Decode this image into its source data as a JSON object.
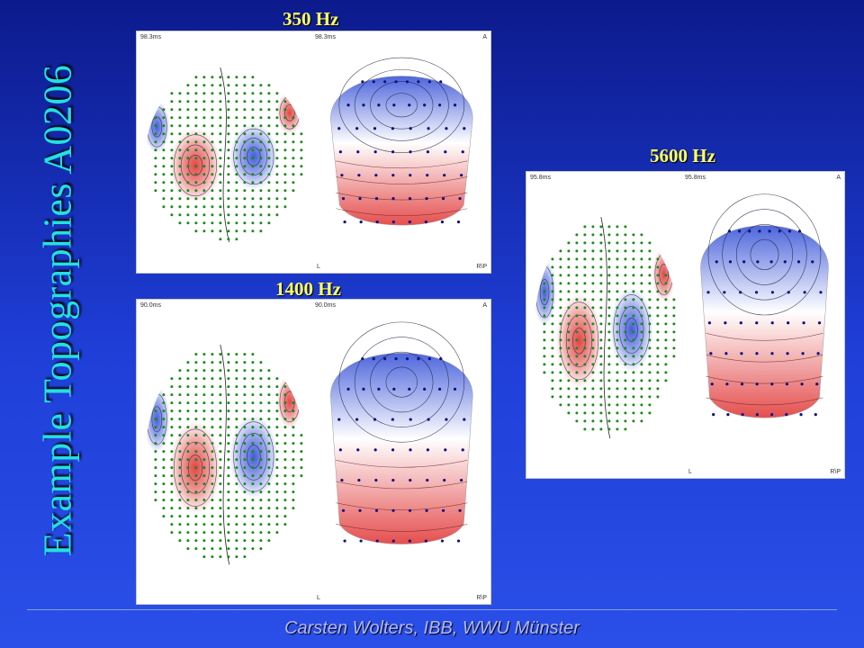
{
  "slide": {
    "title": "Example Topographies A0206",
    "footer": "Carsten Wolters, IBB, WWU Münster"
  },
  "panels": [
    {
      "id": "p350",
      "label": "350 Hz",
      "time_left": "98.3ms",
      "time_center": "98.3ms",
      "corner_a": "A",
      "corner_l": "L",
      "corner_rp": "R\\P"
    },
    {
      "id": "p1400",
      "label": "1400 Hz",
      "time_left": "90.0ms",
      "time_center": "90.0ms",
      "corner_a": "A",
      "corner_l": "L",
      "corner_rp": "R\\P"
    },
    {
      "id": "p5600",
      "label": "5600 Hz",
      "time_left": "95.8ms",
      "time_center": "95.8ms",
      "corner_a": "A",
      "corner_l": "L",
      "corner_rp": "R\\P"
    }
  ],
  "colors": {
    "background": "#1f3fd8",
    "title": "#24e0e0",
    "frequency_label": "#ffff66",
    "footer": "#b0b8ff",
    "positive": "#e23b3b",
    "negative": "#3a55d8",
    "eeg_sensor": "#1a8a1a",
    "meg_sensor": "#101080"
  }
}
